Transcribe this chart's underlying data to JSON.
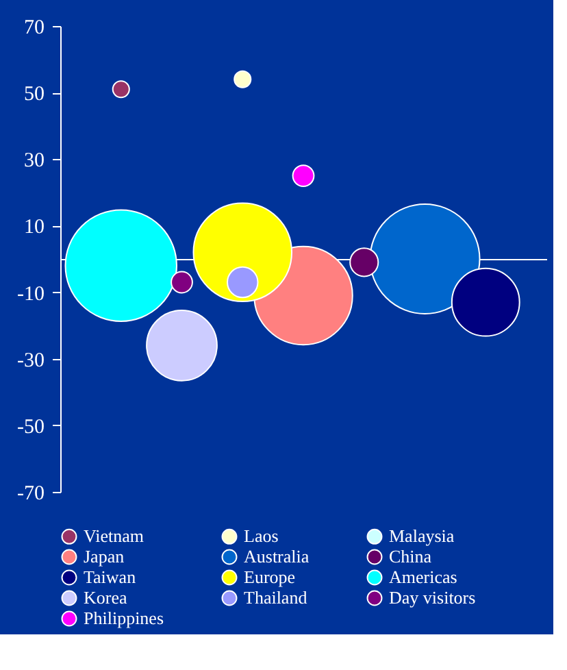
{
  "chart_data": {
    "type": "bubble",
    "categories": [
      null,
      null,
      null,
      null,
      null,
      null,
      null
    ],
    "ylim": [
      -70,
      70
    ],
    "yticks": [
      70,
      50,
      30,
      10,
      -10,
      -30,
      -50,
      -70
    ],
    "tick_labels": "y",
    "grid": false,
    "legend": "bottom",
    "series": [
      {
        "name": "Vietnam",
        "color": "#993366",
        "values": [
          51,
          null,
          null,
          null,
          null,
          null,
          null
        ],
        "sizes": [
          0.022,
          null,
          null,
          null,
          null,
          null,
          null
        ]
      },
      {
        "name": "Laos",
        "color": "#ffffcc",
        "values": [
          null,
          null,
          54,
          null,
          null,
          null,
          null
        ],
        "sizes": [
          null,
          null,
          0.022,
          null,
          null,
          null,
          null
        ]
      },
      {
        "name": "Malaysia",
        "color": "#ccffff",
        "values": [
          null,
          null,
          null,
          null,
          null,
          null,
          null
        ],
        "sizes": [
          null,
          null,
          null,
          null,
          null,
          null,
          null
        ]
      },
      {
        "name": "Japan",
        "color": "#ff8080",
        "values": [
          null,
          null,
          null,
          -11,
          null,
          null,
          null
        ],
        "sizes": [
          null,
          null,
          null,
          0.78,
          null,
          null,
          null
        ]
      },
      {
        "name": "Australia",
        "color": "#0066cc",
        "values": [
          null,
          null,
          null,
          null,
          null,
          0,
          null
        ],
        "sizes": [
          null,
          null,
          null,
          null,
          null,
          0.97,
          null
        ]
      },
      {
        "name": "China",
        "color": "#660066",
        "values": [
          null,
          null,
          null,
          null,
          -1,
          null,
          null
        ],
        "sizes": [
          null,
          null,
          null,
          null,
          0.064,
          null,
          null
        ]
      },
      {
        "name": "Taiwan",
        "color": "#000080",
        "values": [
          null,
          null,
          null,
          null,
          null,
          null,
          -13
        ],
        "sizes": [
          null,
          null,
          null,
          null,
          null,
          null,
          0.37
        ]
      },
      {
        "name": "Europe",
        "color": "#ffff00",
        "values": [
          null,
          null,
          2,
          null,
          null,
          null,
          null
        ],
        "sizes": [
          null,
          null,
          0.78,
          null,
          null,
          null,
          null
        ]
      },
      {
        "name": "Americas",
        "color": "#00ffff",
        "values": [
          -2,
          null,
          null,
          null,
          null,
          null,
          null
        ],
        "sizes": [
          1,
          null,
          null,
          null,
          null,
          null,
          null
        ]
      },
      {
        "name": "Korea",
        "color": "#ccccff",
        "values": [
          null,
          -26,
          null,
          null,
          null,
          null,
          null
        ],
        "sizes": [
          null,
          0.4,
          null,
          null,
          null,
          null,
          null
        ]
      },
      {
        "name": "Thailand",
        "color": "#9999ff",
        "values": [
          null,
          null,
          -7,
          null,
          null,
          null,
          null
        ],
        "sizes": [
          null,
          null,
          0.075,
          null,
          null,
          null,
          null
        ]
      },
      {
        "name": "Day visitors",
        "color": "#800080",
        "values": [
          null,
          -7,
          null,
          null,
          null,
          null,
          null
        ],
        "sizes": [
          null,
          0.036,
          null,
          null,
          null,
          null,
          null
        ]
      },
      {
        "name": "Philippines",
        "color": "#ff00ff",
        "values": [
          null,
          null,
          null,
          25,
          null,
          null,
          null
        ],
        "sizes": [
          null,
          null,
          null,
          0.036,
          null,
          null,
          null
        ]
      }
    ]
  }
}
